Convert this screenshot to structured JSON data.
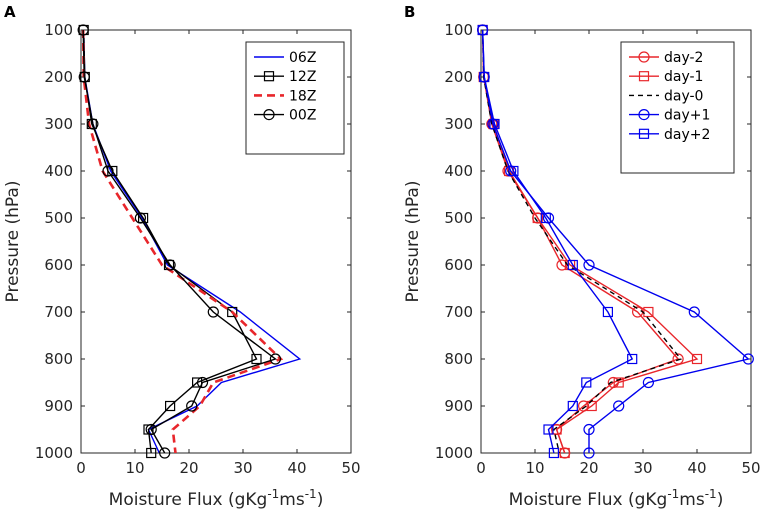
{
  "chart_data": [
    {
      "panel": "A",
      "type": "line",
      "xlabel": "Moisture Flux (gKg-1ms-1)",
      "xlabel_parts": {
        "pre": "Moisture Flux (gKg",
        "sup1": "-1",
        "mid": "ms",
        "sup2": "-1",
        "post": ")"
      },
      "ylabel": "Pressure (hPa)",
      "xlim": [
        0,
        50
      ],
      "ylim": [
        1000,
        100
      ],
      "y_reversed": true,
      "xticks": [
        0,
        10,
        20,
        30,
        40,
        50
      ],
      "yticks": [
        100,
        200,
        300,
        400,
        500,
        600,
        700,
        800,
        900,
        1000
      ],
      "legend_position": "top-right",
      "y": [
        100,
        200,
        300,
        400,
        500,
        600,
        700,
        800,
        850,
        900,
        950,
        1000
      ],
      "series": [
        {
          "name": "06Z",
          "color": "#0000ee",
          "dash": "",
          "marker": "none",
          "values": [
            0.5,
            0.7,
            2.2,
            5.5,
            11.3,
            16.0,
            29.5,
            40.5,
            26.0,
            21.5,
            12.5,
            14.5
          ]
        },
        {
          "name": "12Z",
          "color": "#000000",
          "dash": "",
          "marker": "square",
          "values": [
            0.5,
            0.7,
            2.0,
            5.8,
            11.5,
            16.3,
            28.0,
            32.5,
            21.5,
            16.5,
            12.5,
            13.0
          ]
        },
        {
          "name": "18Z",
          "color": "#e8262b",
          "dash": "8,5",
          "marker": "none",
          "values": [
            0.4,
            0.5,
            1.5,
            4.0,
            9.5,
            15.0,
            28.0,
            37.0,
            24.5,
            22.0,
            17.0,
            17.5
          ]
        },
        {
          "name": "00Z",
          "color": "#000000",
          "dash": "",
          "marker": "circle",
          "values": [
            0.4,
            0.6,
            2.2,
            5.0,
            11.0,
            16.5,
            24.5,
            36.0,
            22.5,
            20.5,
            13.0,
            15.5
          ]
        }
      ]
    },
    {
      "panel": "B",
      "type": "line",
      "xlabel": "Moisture Flux (gKg-1ms-1)",
      "xlabel_parts": {
        "pre": "Moisture Flux (gKg",
        "sup1": "-1",
        "mid": "ms",
        "sup2": "-1",
        "post": ")"
      },
      "ylabel": "Pressure (hPa)",
      "xlim": [
        0,
        50
      ],
      "ylim": [
        1000,
        100
      ],
      "y_reversed": true,
      "xticks": [
        0,
        10,
        20,
        30,
        40,
        50
      ],
      "yticks": [
        100,
        200,
        300,
        400,
        500,
        600,
        700,
        800,
        900,
        1000
      ],
      "legend_position": "top-right",
      "y": [
        100,
        200,
        300,
        400,
        500,
        600,
        700,
        800,
        850,
        900,
        950,
        1000
      ],
      "series": [
        {
          "name": "day-2",
          "color": "#e8262b",
          "dash": "",
          "marker": "circle",
          "values": [
            0.3,
            0.5,
            2.0,
            5.0,
            10.5,
            15.0,
            29.0,
            36.5,
            24.5,
            19.0,
            14.0,
            15.5
          ]
        },
        {
          "name": "day-1",
          "color": "#e8262b",
          "dash": "",
          "marker": "square",
          "values": [
            0.3,
            0.5,
            2.3,
            5.2,
            10.5,
            16.5,
            31.0,
            40.0,
            25.5,
            20.5,
            14.0,
            15.5
          ]
        },
        {
          "name": "day-0",
          "color": "#000000",
          "dash": "5,4",
          "marker": "none",
          "values": [
            0.3,
            0.5,
            2.0,
            5.0,
            10.0,
            16.0,
            30.0,
            37.0,
            24.0,
            19.5,
            13.5,
            14.5
          ]
        },
        {
          "name": "day+1",
          "color": "#0000ee",
          "dash": "",
          "marker": "circle",
          "values": [
            0.3,
            0.6,
            2.2,
            5.5,
            12.5,
            20.0,
            39.5,
            49.5,
            31.0,
            25.5,
            20.0,
            20.0
          ]
        },
        {
          "name": "day+2",
          "color": "#0000ee",
          "dash": "",
          "marker": "square",
          "values": [
            0.3,
            0.6,
            2.5,
            6.0,
            12.0,
            17.0,
            23.5,
            28.0,
            19.5,
            17.0,
            12.5,
            13.5
          ]
        }
      ]
    }
  ]
}
